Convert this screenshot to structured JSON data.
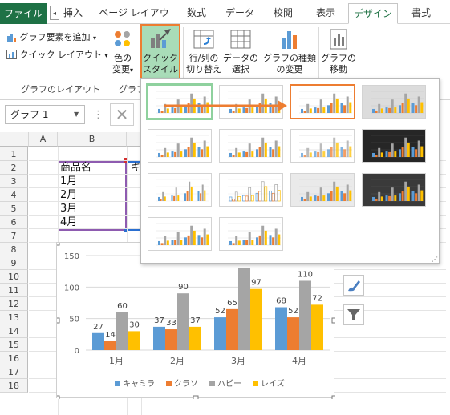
{
  "ribbon_tabs": [
    {
      "label": "ファイル"
    },
    {
      "label": "挿入"
    },
    {
      "label": "ページ レイアウト"
    },
    {
      "label": "数式"
    },
    {
      "label": "データ"
    },
    {
      "label": "校閲"
    },
    {
      "label": "表示"
    },
    {
      "label": "デザイン"
    },
    {
      "label": "書式"
    }
  ],
  "tab_scroll_glyph": "◂",
  "ribbon": {
    "add_element": "グラフ要素を追加",
    "quick_layout": "クイック レイアウト",
    "group_layout": "グラフのレイアウト",
    "change_color_1": "色の",
    "change_color_2": "変更",
    "quick_style_1": "クイック",
    "quick_style_2": "スタイル",
    "group_style": "グラフ",
    "switch_rowcol_1": "行/列の",
    "switch_rowcol_2": "切り替え",
    "select_data_1": "データの",
    "select_data_2": "選択",
    "change_type_1": "グラフの種類",
    "change_type_2": "の変更",
    "move_chart_1": "グラフの",
    "move_chart_2": "移動",
    "dropdown_glyph": "▾"
  },
  "formula": {
    "name_box": "グラフ 1",
    "name_box_arrow": "▼",
    "dots": "⋮",
    "cancel_glyph": "✕"
  },
  "sheet": {
    "columns": [
      "A",
      "B"
    ],
    "rows": [
      "1",
      "2",
      "3",
      "4",
      "5",
      "6",
      "7",
      "8",
      "9",
      "10",
      "11",
      "12",
      "13",
      "14",
      "15",
      "16",
      "17",
      "18"
    ],
    "cells": {
      "b2": "商品名",
      "c2": "キ",
      "b3": "1月",
      "b4": "2月",
      "b5": "3月",
      "b6": "4月"
    }
  },
  "colors": {
    "accent_orange": "#ed7d31",
    "highlight_green": "#8fd19e",
    "series1": "#5b9bd5",
    "series2": "#ed7d31",
    "series3": "#a5a5a5",
    "series4": "#ffc000",
    "excel_green": "#217346"
  },
  "chart_data": {
    "type": "bar",
    "categories": [
      "1月",
      "2月",
      "3月",
      "4月"
    ],
    "series": [
      {
        "name": "キャミラ",
        "values": [
          27,
          37,
          52,
          68
        ]
      },
      {
        "name": "クラソ",
        "values": [
          14,
          33,
          65,
          52
        ]
      },
      {
        "name": "ハビー",
        "values": [
          60,
          90,
          130,
          110
        ]
      },
      {
        "name": "レイズ",
        "values": [
          30,
          37,
          97,
          72
        ]
      }
    ],
    "ylim": [
      0,
      150
    ],
    "yticks": [
      "0",
      "50",
      "100",
      "150"
    ],
    "legend_position": "bottom",
    "grid": true,
    "visible_data_labels": [
      [
        "27",
        "14",
        "60",
        "30"
      ],
      [
        "37",
        "33",
        "90",
        "37"
      ],
      [
        "52",
        "65",
        "",
        "97"
      ],
      [
        "68",
        "52",
        "110",
        "72"
      ]
    ]
  },
  "side_buttons": {
    "style_icon": "brush-icon",
    "filter_icon": "filter-icon"
  }
}
